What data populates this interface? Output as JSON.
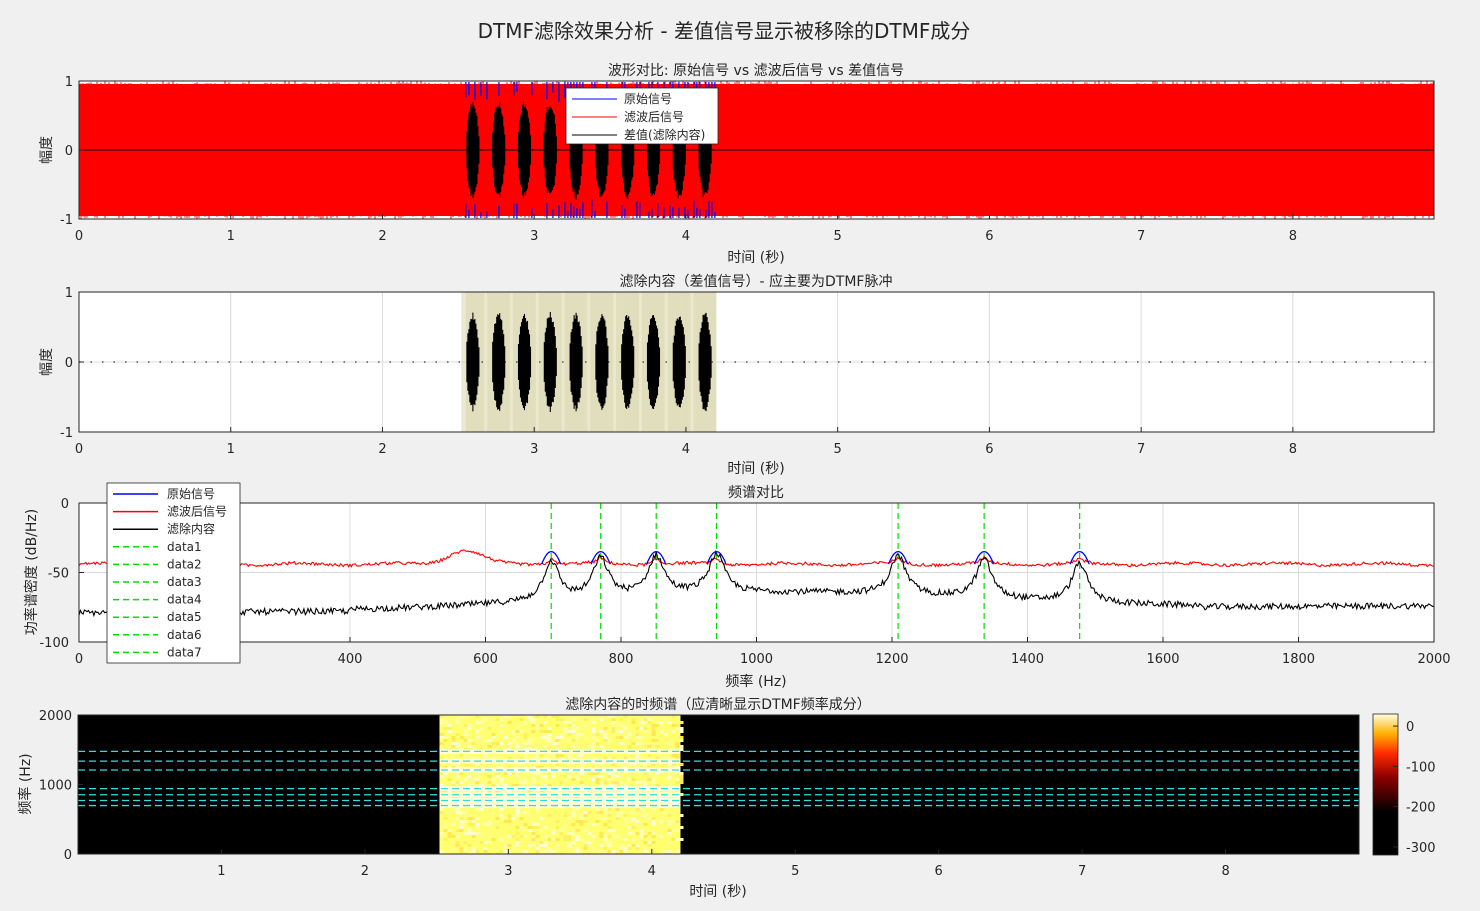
{
  "figure_title": "DTMF滤除效果分析 - 差值信号显示被移除的DTMF成分",
  "colors": {
    "original": "#0000ff",
    "filtered": "#ff0000",
    "difference": "#000000",
    "dtmf_marker": "#00dd00",
    "spec_marker": "#33dddd",
    "grid": "#dcdcdc",
    "band_fill": "#e8e6c8"
  },
  "chart_data": [
    {
      "type": "line",
      "title": "波形对比: 原始信号 vs 滤波后信号 vs 差值信号",
      "xlabel": "时间 (秒)",
      "ylabel": "幅度",
      "xlim": [
        0,
        8.93
      ],
      "ylim": [
        -1,
        1
      ],
      "xticks": [
        "0",
        "1",
        "2",
        "3",
        "4",
        "5",
        "6",
        "7",
        "8"
      ],
      "yticks": [
        "-1",
        "0",
        "1"
      ],
      "legend": [
        "原始信号",
        "滤波后信号",
        "差值(滤除内容)"
      ],
      "legend_position": "top-center",
      "tone_burst_starts_s": [
        2.55,
        2.72,
        2.89,
        3.06,
        3.23,
        3.4,
        3.57,
        3.74,
        3.91,
        4.08
      ],
      "tone_burst_duration_s": 0.09,
      "tone_burst_peak": 0.72,
      "noise_band_amplitude": 1.0
    },
    {
      "type": "line",
      "title": "滤除内容（差值信号）- 应主要为DTMF脉冲",
      "xlabel": "时间 (秒)",
      "ylabel": "幅度",
      "xlim": [
        0,
        8.93
      ],
      "ylim": [
        -1,
        1
      ],
      "xticks": [
        "0",
        "1",
        "2",
        "3",
        "4",
        "5",
        "6",
        "7",
        "8"
      ],
      "yticks": [
        "-1",
        "0",
        "1"
      ],
      "highlight_region_s": [
        2.55,
        4.2
      ]
    },
    {
      "type": "line",
      "title": "频谱对比",
      "xlabel": "频率 (Hz)",
      "ylabel": "功率谱密度 (dB/Hz)",
      "xlim": [
        0,
        2000
      ],
      "ylim": [
        -100,
        0
      ],
      "xticks": [
        "0",
        "200",
        "400",
        "600",
        "800",
        "1000",
        "1200",
        "1400",
        "1600",
        "1800",
        "2000"
      ],
      "yticks": [
        "-100",
        "-50",
        "0"
      ],
      "legend": [
        "原始信号",
        "滤波后信号",
        "滤除内容",
        "data1",
        "data2",
        "data3",
        "data4",
        "data5",
        "data6",
        "data7"
      ],
      "legend_position": "top-left",
      "dtmf_frequencies_hz": [
        697,
        770,
        852,
        941,
        1209,
        1336,
        1477
      ],
      "filtered_level_db": -44,
      "filtered_bump": {
        "center_hz": 570,
        "peak_db": -34
      },
      "difference_floor_db": {
        "at_0": -79,
        "at_2000": -74
      },
      "dtmf_peak_db": -35
    },
    {
      "type": "heatmap",
      "title": "滤除内容的时频谱（应清晰显示DTMF频率成分）",
      "xlabel": "时间 (秒)",
      "ylabel": "频率 (Hz)",
      "xlim": [
        0,
        8.93
      ],
      "ylim": [
        0,
        2000
      ],
      "xticks": [
        "1",
        "2",
        "3",
        "4",
        "5",
        "6",
        "7",
        "8"
      ],
      "yticks": [
        "0",
        "1000",
        "2000"
      ],
      "active_region_s": [
        2.52,
        4.2
      ],
      "marker_frequencies_hz": [
        697,
        770,
        852,
        941,
        1209,
        1336,
        1477
      ],
      "colorbar": {
        "range": [
          -320,
          30
        ],
        "ticks": [
          "0",
          "-100",
          "-200",
          "-300"
        ]
      }
    }
  ]
}
